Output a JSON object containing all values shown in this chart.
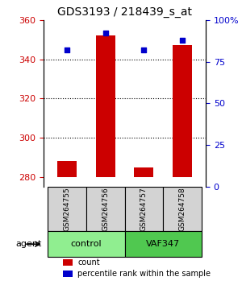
{
  "title": "GDS3193 / 218439_s_at",
  "samples": [
    "GSM264755",
    "GSM264756",
    "GSM264757",
    "GSM264758"
  ],
  "groups": [
    "control",
    "control",
    "VAF347",
    "VAF347"
  ],
  "group_labels": [
    "control",
    "VAF347"
  ],
  "group_colors": [
    "#90EE90",
    "#50C850"
  ],
  "bar_color": "#CC0000",
  "dot_color": "#0000CC",
  "counts": [
    288,
    352,
    285,
    347
  ],
  "percentiles": [
    82,
    92,
    82,
    88
  ],
  "ylim_left": [
    275,
    360
  ],
  "ylim_right": [
    0,
    100
  ],
  "yticks_left": [
    280,
    300,
    320,
    340,
    360
  ],
  "yticks_right": [
    0,
    25,
    50,
    75,
    100
  ],
  "ytick_labels_right": [
    "0",
    "25",
    "50",
    "75",
    "100%"
  ],
  "bar_bottom": 280,
  "xlabel_color_left": "#CC0000",
  "xlabel_color_right": "#0000CC",
  "agent_label": "agent",
  "legend_count": "count",
  "legend_percentile": "percentile rank within the sample",
  "background_color": "#ffffff",
  "sample_box_color": "#d3d3d3"
}
